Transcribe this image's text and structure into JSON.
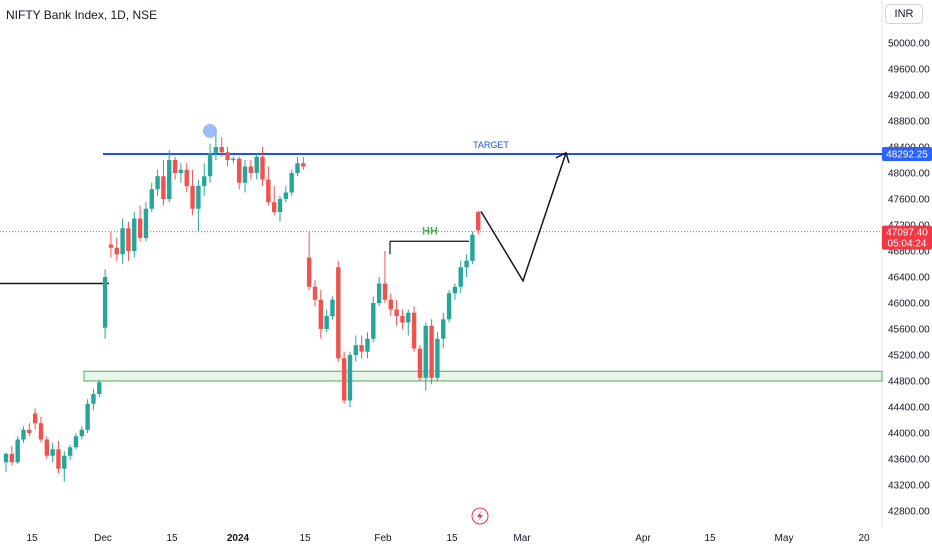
{
  "header": {
    "title": "NIFTY Bank Index, 1D, NSE",
    "currency": "INR"
  },
  "colors": {
    "up": "#26a69a",
    "down": "#ef5350",
    "target_line": "#1e53e5",
    "support_zone": "#4caf50",
    "hh_text": "#4caf50",
    "price_tag": "#f23645",
    "target_tag": "#2962ff"
  },
  "chart_data": {
    "type": "candlestick",
    "y_axis_ticks": [
      "50000.00",
      "49600.00",
      "49200.00",
      "48800.00",
      "48400.00",
      "48000.00",
      "47600.00",
      "47200.00",
      "46800.00",
      "46400.00",
      "46000.00",
      "45600.00",
      "45200.00",
      "44800.00",
      "44400.00",
      "44000.00",
      "43600.00",
      "43200.00",
      "42800.00"
    ],
    "y_axis_values": [
      50000,
      49600,
      49200,
      48800,
      48400,
      48000,
      47600,
      47200,
      46800,
      46400,
      46000,
      45600,
      45200,
      44800,
      44400,
      44000,
      43600,
      43200,
      42800
    ],
    "x_axis_ticks": [
      "15",
      "Dec",
      "15",
      "2024",
      "15",
      "Feb",
      "15",
      "Mar",
      "Apr",
      "15",
      "May",
      "20"
    ],
    "ohlc": [
      [
        43550,
        43700,
        43400,
        43680
      ],
      [
        43680,
        43800,
        43500,
        43550
      ],
      [
        43550,
        43950,
        43520,
        43900
      ],
      [
        43900,
        44100,
        43850,
        44050
      ],
      [
        44050,
        44150,
        43950,
        44000
      ],
      [
        44300,
        44380,
        44050,
        44150
      ],
      [
        44150,
        44250,
        43850,
        43900
      ],
      [
        43900,
        43950,
        43600,
        43650
      ],
      [
        43650,
        43850,
        43550,
        43750
      ],
      [
        43750,
        43880,
        43380,
        43450
      ],
      [
        43450,
        43720,
        43250,
        43650
      ],
      [
        43650,
        43820,
        43580,
        43780
      ],
      [
        43780,
        44000,
        43750,
        43950
      ],
      [
        43950,
        44100,
        43900,
        44050
      ],
      [
        44050,
        44520,
        44000,
        44450
      ],
      [
        44450,
        44680,
        44350,
        44600
      ],
      [
        44600,
        44820,
        44550,
        44780
      ],
      [
        45620,
        46520,
        45450,
        46400
      ],
      [
        46900,
        47100,
        46700,
        46850
      ],
      [
        46850,
        47000,
        46650,
        46750
      ],
      [
        46750,
        47300,
        46600,
        47150
      ],
      [
        47150,
        47250,
        46650,
        46800
      ],
      [
        46800,
        47400,
        46700,
        47300
      ],
      [
        47300,
        47500,
        46950,
        47000
      ],
      [
        47000,
        47550,
        46950,
        47450
      ],
      [
        47450,
        47850,
        47400,
        47750
      ],
      [
        47750,
        48050,
        47650,
        47950
      ],
      [
        47950,
        48200,
        47500,
        47600
      ],
      [
        47600,
        48350,
        47550,
        48200
      ],
      [
        48200,
        48250,
        47900,
        48000
      ],
      [
        48000,
        48150,
        47850,
        48050
      ],
      [
        48050,
        48150,
        47700,
        47800
      ],
      [
        47800,
        48050,
        47350,
        47450
      ],
      [
        47450,
        47900,
        47100,
        47800
      ],
      [
        47800,
        48150,
        47650,
        47950
      ],
      [
        47950,
        48450,
        47850,
        48300
      ],
      [
        48300,
        48650,
        48200,
        48400
      ],
      [
        48400,
        48550,
        48250,
        48320
      ],
      [
        48320,
        48400,
        48100,
        48200
      ],
      [
        48200,
        48250,
        48150,
        48220
      ],
      [
        48220,
        48250,
        47750,
        47850
      ],
      [
        47850,
        48200,
        47700,
        48100
      ],
      [
        48100,
        48200,
        47900,
        48000
      ],
      [
        48000,
        48300,
        47900,
        48250
      ],
      [
        48250,
        48400,
        47800,
        47900
      ],
      [
        47900,
        48100,
        47500,
        47550
      ],
      [
        47550,
        47800,
        47350,
        47400
      ],
      [
        47400,
        47650,
        47250,
        47600
      ],
      [
        47600,
        47800,
        47550,
        47700
      ],
      [
        47700,
        48050,
        47650,
        48000
      ],
      [
        48000,
        48250,
        47950,
        48150
      ],
      [
        48150,
        48250,
        48050,
        48100
      ],
      [
        46700,
        47100,
        46200,
        46250
      ],
      [
        46250,
        46350,
        45950,
        46050
      ],
      [
        46050,
        46200,
        45450,
        45600
      ],
      [
        45600,
        45900,
        45550,
        45800
      ],
      [
        45800,
        46100,
        45750,
        46050
      ],
      [
        46550,
        46650,
        45100,
        45150
      ],
      [
        45150,
        45250,
        44450,
        44500
      ],
      [
        44500,
        45250,
        44400,
        45200
      ],
      [
        45200,
        45500,
        45100,
        45350
      ],
      [
        45350,
        45500,
        45150,
        45250
      ],
      [
        45250,
        45550,
        45150,
        45450
      ],
      [
        45450,
        46100,
        45400,
        46000
      ],
      [
        46000,
        46400,
        45950,
        46300
      ],
      [
        46300,
        46800,
        46000,
        46050
      ],
      [
        46050,
        46150,
        45800,
        45900
      ],
      [
        45900,
        46050,
        45650,
        45800
      ],
      [
        45800,
        45900,
        45600,
        45700
      ],
      [
        45700,
        45900,
        45500,
        45850
      ],
      [
        45850,
        45950,
        45250,
        45300
      ],
      [
        45300,
        45350,
        44800,
        44850
      ],
      [
        44850,
        45700,
        44650,
        45650
      ],
      [
        45650,
        45750,
        44750,
        44850
      ],
      [
        44850,
        45550,
        44800,
        45450
      ],
      [
        45450,
        45850,
        45300,
        45750
      ],
      [
        45750,
        46200,
        45700,
        46150
      ],
      [
        46150,
        46300,
        46050,
        46250
      ],
      [
        46250,
        46650,
        46150,
        46550
      ],
      [
        46550,
        46750,
        46400,
        46650
      ],
      [
        46650,
        47100,
        46600,
        47050
      ],
      [
        47400,
        47420,
        47050,
        47120
      ]
    ],
    "target_level": 48292.25,
    "current_price": 47097.4,
    "support_zone": [
      44800,
      44950
    ],
    "prior_level": 46300,
    "projection": [
      [
        47097.4,
        47410
      ],
      [
        46350,
        46340
      ],
      [
        48310,
        48310
      ]
    ]
  },
  "annotations": {
    "target_label": "TARGET",
    "hh_label": "HH",
    "target_price_tag": "48292.25",
    "price_tag": "47097.40",
    "countdown_tag": "05:04:24"
  }
}
